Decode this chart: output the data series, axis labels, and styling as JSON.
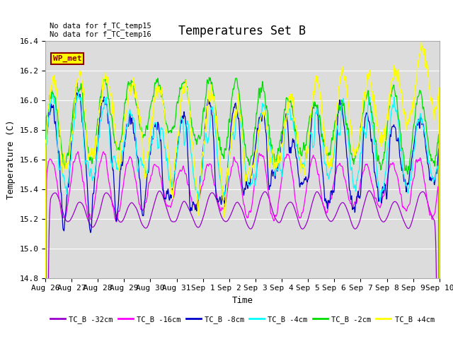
{
  "title": "Temperatures Set B",
  "xlabel": "Time",
  "ylabel": "Temperature (C)",
  "ylim": [
    14.8,
    16.4
  ],
  "annotation_text": "No data for f_TC_temp15\nNo data for f_TC_temp16",
  "wp_met_label": "WP_met",
  "x_tick_labels": [
    "Aug 26",
    "Aug 27",
    "Aug 28",
    "Aug 29",
    "Aug 30",
    "Aug 31",
    "Sep 1",
    "Sep 2",
    "Sep 3",
    "Sep 4",
    "Sep 5",
    "Sep 6",
    "Sep 7",
    "Sep 8",
    "Sep 9",
    "Sep 10"
  ],
  "legend_entries": [
    "TC_B -32cm",
    "TC_B -16cm",
    "TC_B -8cm",
    "TC_B -4cm",
    "TC_B -2cm",
    "TC_B +4cm"
  ],
  "line_colors": [
    "#9900CC",
    "#FF00FF",
    "#0000CC",
    "#00FFFF",
    "#00DD00",
    "#FFFF00"
  ],
  "bg_color": "#DCDCDC",
  "grid_color": "#FFFFFF",
  "n_points": 1500,
  "title_fontsize": 12,
  "label_fontsize": 9,
  "tick_fontsize": 8,
  "figwidth": 6.4,
  "figheight": 4.8,
  "dpi": 100
}
